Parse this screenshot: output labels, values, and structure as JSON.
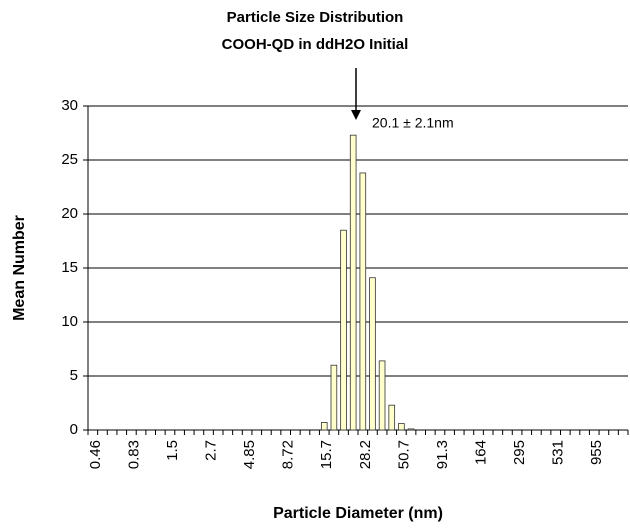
{
  "chart_data": {
    "type": "bar",
    "title": [
      "Particle Size Distribution",
      "COOH-QD  in ddH2O Initial"
    ],
    "xlabel": "Particle Diameter (nm)",
    "ylabel": "Mean Number",
    "annotation": "20.1 ± 2.1nm",
    "categories": [
      "0.46",
      null,
      null,
      null,
      "0.83",
      null,
      null,
      null,
      "1.5",
      null,
      null,
      null,
      "2.7",
      null,
      null,
      null,
      "4.85",
      null,
      null,
      null,
      "8.72",
      null,
      null,
      null,
      "15.7",
      null,
      null,
      null,
      "28.2",
      null,
      null,
      null,
      "50.7",
      null,
      null,
      null,
      "91.3",
      null,
      null,
      null,
      "164",
      null,
      null,
      null,
      "295",
      null,
      null,
      null,
      "531",
      null,
      null,
      null,
      "955",
      null,
      null,
      null
    ],
    "values": [
      0,
      0,
      0,
      0,
      0,
      0,
      0,
      0,
      0,
      0,
      0,
      0,
      0,
      0,
      0,
      0,
      0,
      0,
      0,
      0,
      0,
      0,
      0,
      0,
      0.7,
      6,
      18.5,
      27.3,
      23.8,
      14.1,
      6.4,
      2.3,
      0.6,
      0.1,
      0,
      0,
      0,
      0,
      0,
      0,
      0,
      0,
      0,
      0,
      0,
      0,
      0,
      0,
      0,
      0,
      0,
      0,
      0,
      0,
      0,
      0
    ],
    "color": "#ffffcc",
    "ylim": [
      0,
      30
    ],
    "yticks": [
      0,
      5,
      10,
      15,
      20,
      25,
      30
    ],
    "grid": true
  }
}
